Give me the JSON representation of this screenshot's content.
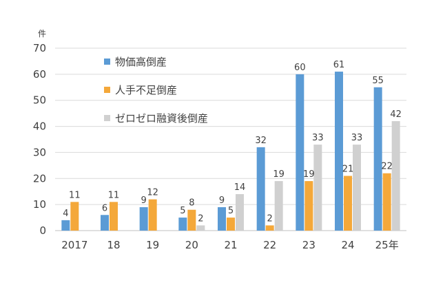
{
  "chart_data": {
    "type": "bar",
    "unit_label": "件",
    "categories": [
      "2017",
      "18",
      "19",
      "20",
      "21",
      "22",
      "23",
      "24",
      "25年"
    ],
    "series": [
      {
        "name": "物価高倒産",
        "color": "#5b9bd5",
        "values": [
          4,
          6,
          9,
          5,
          9,
          32,
          60,
          61,
          55
        ],
        "labels": [
          "4",
          "6",
          "9",
          "5",
          "9",
          "32",
          "60",
          "61",
          "55"
        ]
      },
      {
        "name": "人手不足倒産",
        "color": "#f4a83a",
        "values": [
          11,
          11,
          12,
          8,
          5,
          2,
          19,
          21,
          22
        ],
        "labels": [
          "11",
          "11",
          "12",
          "8",
          "5",
          "2",
          "19",
          "21",
          "22"
        ]
      },
      {
        "name": "ゼロゼロ融資後倒産",
        "color": "#d0d0d0",
        "values": [
          null,
          null,
          null,
          2,
          14,
          19,
          33,
          33,
          42
        ],
        "labels": [
          "",
          "",
          "",
          "2",
          "14",
          "19",
          "33",
          "33",
          "42"
        ]
      }
    ],
    "ylim": [
      0,
      70
    ],
    "yticks": [
      "0",
      "10",
      "20",
      "30",
      "40",
      "50",
      "60",
      "70"
    ],
    "grid": true,
    "legend_position": "top-left"
  }
}
